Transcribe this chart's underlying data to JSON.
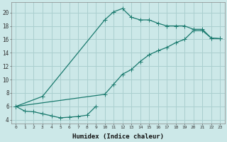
{
  "xlabel": "Humidex (Indice chaleur)",
  "bg_color": "#cce8e8",
  "grid_color": "#aacfcf",
  "line_color": "#1a7a6e",
  "xlim": [
    -0.5,
    23.5
  ],
  "ylim": [
    3.5,
    21.5
  ],
  "yticks": [
    4,
    6,
    8,
    10,
    12,
    14,
    16,
    18,
    20
  ],
  "xticks": [
    0,
    1,
    2,
    3,
    4,
    5,
    6,
    7,
    8,
    9,
    10,
    11,
    12,
    13,
    14,
    15,
    16,
    17,
    18,
    19,
    20,
    21,
    22,
    23
  ],
  "curve1_x": [
    0,
    1,
    2,
    3,
    4,
    5,
    6,
    7,
    8,
    9
  ],
  "curve1_y": [
    6.0,
    5.3,
    5.2,
    4.9,
    4.6,
    4.3,
    4.4,
    4.5,
    4.7,
    6.0
  ],
  "curve2_x": [
    0,
    3,
    10,
    11,
    12,
    13,
    14,
    15,
    16,
    17,
    18,
    19,
    20,
    21,
    22,
    23
  ],
  "curve2_y": [
    6.0,
    7.5,
    18.9,
    20.1,
    20.6,
    19.3,
    18.9,
    18.9,
    18.4,
    18.0,
    18.0,
    18.0,
    17.5,
    17.5,
    16.2,
    16.1
  ],
  "curve3_x": [
    0,
    10,
    11,
    12,
    13,
    14,
    15,
    16,
    17,
    18,
    19,
    20,
    21,
    22,
    23
  ],
  "curve3_y": [
    6.0,
    7.8,
    9.3,
    10.8,
    11.5,
    12.7,
    13.7,
    14.3,
    14.8,
    15.5,
    16.0,
    17.3,
    17.3,
    16.2,
    16.1
  ],
  "lw": 0.9,
  "ms": 2.5
}
